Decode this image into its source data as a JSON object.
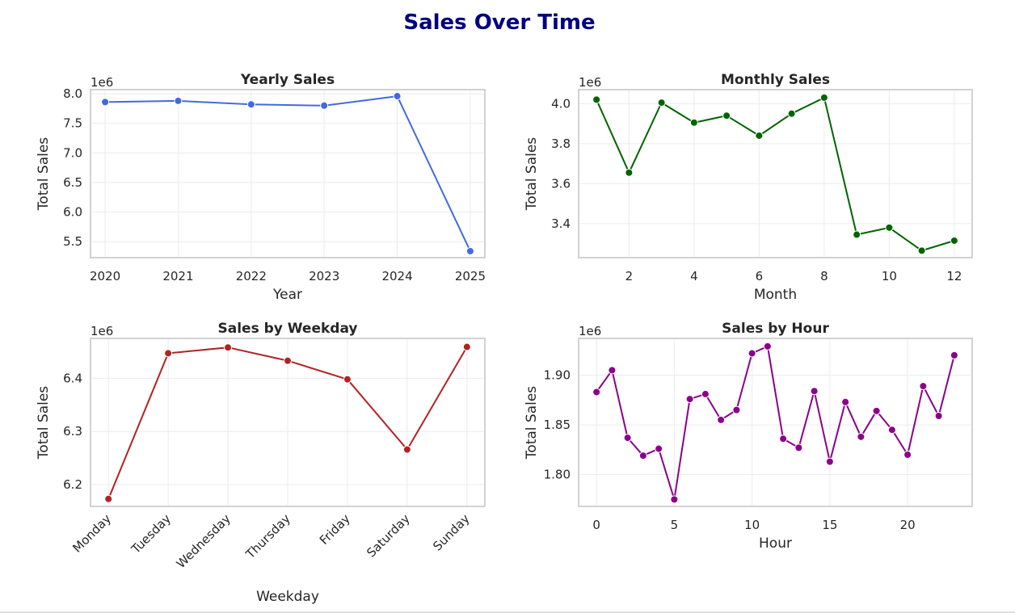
{
  "suptitle": "Sales Over Time",
  "chart_data": [
    {
      "type": "line",
      "title": "Yearly Sales",
      "xlabel": "Year",
      "ylabel": "Total Sales",
      "offset_label": "1e6",
      "color": "#4169e1",
      "x": [
        2020,
        2021,
        2022,
        2023,
        2024,
        2025
      ],
      "y": [
        7.86,
        7.88,
        7.82,
        7.8,
        7.96,
        5.34
      ],
      "xlim": [
        2019.8,
        2025.2
      ],
      "ylim": [
        5.23,
        8.07
      ],
      "xticks": [
        2020,
        2021,
        2022,
        2023,
        2024,
        2025
      ],
      "xticklabels": [
        "2020",
        "2021",
        "2022",
        "2023",
        "2024",
        "2025"
      ],
      "yticks": [
        5.5,
        6.0,
        6.5,
        7.0,
        7.5,
        8.0
      ],
      "yticklabels": [
        "5.5",
        "6.0",
        "6.5",
        "7.0",
        "7.5",
        "8.0"
      ],
      "grid": true
    },
    {
      "type": "line",
      "title": "Monthly Sales",
      "xlabel": "Month",
      "ylabel": "Total Sales",
      "offset_label": "1e6",
      "color": "#006400",
      "x": [
        1,
        2,
        3,
        4,
        5,
        6,
        7,
        8,
        9,
        10,
        11,
        12
      ],
      "y": [
        4.02,
        3.655,
        4.005,
        3.905,
        3.94,
        3.84,
        3.95,
        4.03,
        3.345,
        3.38,
        3.265,
        3.315
      ],
      "xlim": [
        0.45,
        12.55
      ],
      "ylim": [
        3.23,
        4.07
      ],
      "xticks": [
        2,
        4,
        6,
        8,
        10,
        12
      ],
      "xticklabels": [
        "2",
        "4",
        "6",
        "8",
        "10",
        "12"
      ],
      "yticks": [
        3.4,
        3.6,
        3.8,
        4.0
      ],
      "yticklabels": [
        "3.4",
        "3.6",
        "3.8",
        "4.0"
      ],
      "grid": true
    },
    {
      "type": "line",
      "title": "Sales by Weekday",
      "xlabel": "Weekday",
      "ylabel": "Total Sales",
      "offset_label": "1e6",
      "color": "#b22222",
      "x": [
        0,
        1,
        2,
        3,
        4,
        5,
        6
      ],
      "y": [
        6.173,
        6.447,
        6.458,
        6.433,
        6.398,
        6.266,
        6.459
      ],
      "xlim": [
        -0.3,
        6.3
      ],
      "ylim": [
        6.159,
        6.475
      ],
      "xticks": [
        0,
        1,
        2,
        3,
        4,
        5,
        6
      ],
      "xticklabels": [
        "Monday",
        "Tuesday",
        "Wednesday",
        "Thursday",
        "Friday",
        "Saturday",
        "Sunday"
      ],
      "yticks": [
        6.2,
        6.3,
        6.4
      ],
      "yticklabels": [
        "6.2",
        "6.3",
        "6.4"
      ],
      "rotate_xticks": 45,
      "grid": true
    },
    {
      "type": "line",
      "title": "Sales by Hour",
      "xlabel": "Hour",
      "ylabel": "Total Sales",
      "offset_label": "1e6",
      "color": "#8b008b",
      "x": [
        0,
        1,
        2,
        3,
        4,
        5,
        6,
        7,
        8,
        9,
        10,
        11,
        12,
        13,
        14,
        15,
        16,
        17,
        18,
        19,
        20,
        21,
        22,
        23
      ],
      "y": [
        1.883,
        1.905,
        1.837,
        1.819,
        1.826,
        1.775,
        1.876,
        1.881,
        1.855,
        1.865,
        1.922,
        1.929,
        1.836,
        1.827,
        1.884,
        1.813,
        1.873,
        1.838,
        1.864,
        1.845,
        1.82,
        1.889,
        1.859,
        1.92
      ],
      "xlim": [
        -1.15,
        24.15
      ],
      "ylim": [
        1.768,
        1.937
      ],
      "xticks": [
        0,
        5,
        10,
        15,
        20
      ],
      "xticklabels": [
        "0",
        "5",
        "10",
        "15",
        "20"
      ],
      "yticks": [
        1.8,
        1.85,
        1.9
      ],
      "yticklabels": [
        "1.80",
        "1.85",
        "1.90"
      ],
      "grid": true
    }
  ]
}
